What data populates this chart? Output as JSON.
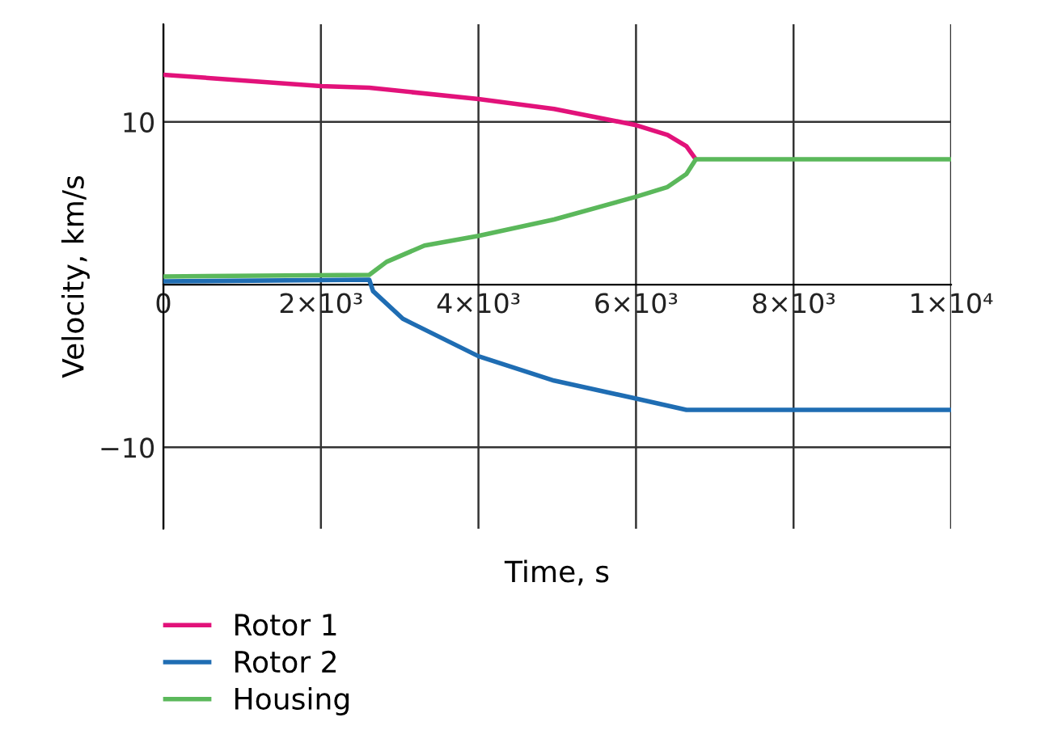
{
  "chart_data": {
    "type": "line",
    "xlabel": "Time, s",
    "ylabel": "Velocity, km/s",
    "xlim": [
      0,
      10000
    ],
    "ylim": [
      -15,
      16
    ],
    "xticks": [
      0,
      {
        "value": 2000,
        "label": "2×10³"
      },
      {
        "value": 4000,
        "label": "4×10³"
      },
      {
        "value": 6000,
        "label": "6×10³"
      },
      {
        "value": 8000,
        "label": "8×10³"
      },
      {
        "value": 10000,
        "label": "1×10⁴"
      }
    ],
    "yticks": [
      {
        "value": -10,
        "label": "−10"
      },
      10
    ],
    "grid": true,
    "legend": "bottom left",
    "marker": "none",
    "line_style": "solid",
    "series": [
      {
        "name": "Rotor 1",
        "color": "#e2127a",
        "x": [
          0,
          2000,
          2614,
          4000,
          4960,
          6000,
          6400,
          6640,
          6760
        ],
        "values": [
          12.9,
          12.2,
          12.1,
          11.4,
          10.8,
          9.8,
          9.2,
          8.5,
          7.7
        ]
      },
      {
        "name": "Rotor 2",
        "color": "#1f6db3",
        "x": [
          0,
          2614,
          2662,
          3040,
          4000,
          4960,
          6000,
          6640,
          10000
        ],
        "values": [
          0.2,
          0.3,
          -0.4,
          -2.1,
          -4.4,
          -5.9,
          -7.0,
          -7.7,
          -7.7
        ]
      },
      {
        "name": "Housing",
        "color": "#5bb85b",
        "x": [
          0,
          2614,
          2834,
          3314,
          4000,
          4960,
          6000,
          6400,
          6640,
          6760,
          10000
        ],
        "values": [
          0.5,
          0.6,
          1.4,
          2.4,
          3.0,
          4.0,
          5.4,
          6.0,
          6.8,
          7.7,
          7.7
        ]
      }
    ]
  }
}
